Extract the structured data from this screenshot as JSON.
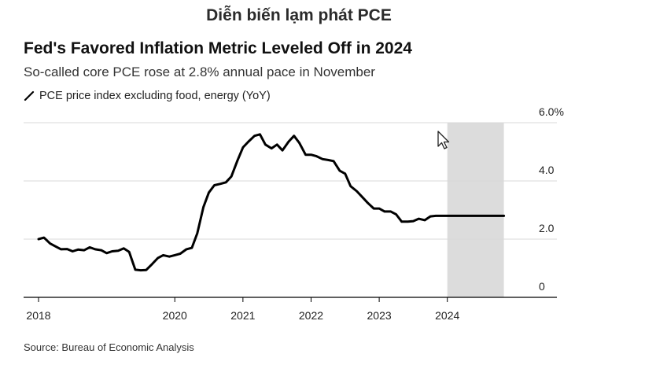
{
  "page": {
    "top_title": "Diễn biến lạm phát PCE"
  },
  "chart_data": {
    "type": "line",
    "title": "Fed's Favored Inflation Metric Leveled Off in 2024",
    "subtitle": "So-called core PCE rose at 2.8% annual pace in November",
    "source": "Source: Bureau of Economic Analysis",
    "xlabel": "",
    "ylabel": "",
    "xlim": [
      2018.0,
      2024.95
    ],
    "ylim": [
      0,
      6.0
    ],
    "x_ticks": [
      2018,
      2020,
      2021,
      2022,
      2023,
      2024
    ],
    "x_tick_labels": [
      "2018",
      "2020",
      "2021",
      "2022",
      "2023",
      "2024"
    ],
    "y_ticks": [
      0,
      2.0,
      4.0,
      6.0
    ],
    "y_tick_labels": [
      "0",
      "2.0",
      "4.0",
      "6.0%"
    ],
    "grid": true,
    "highlight_range": [
      2024.0,
      2024.83
    ],
    "highlight_color": "#dcdcdc",
    "line_color": "#000000",
    "legend_position": "top-left",
    "series": [
      {
        "name": "PCE price index excluding food, energy (YoY)",
        "x": [
          2018.0,
          2018.08,
          2018.17,
          2018.25,
          2018.33,
          2018.42,
          2018.5,
          2018.58,
          2018.67,
          2018.75,
          2018.83,
          2018.92,
          2019.0,
          2019.08,
          2019.17,
          2019.25,
          2019.33,
          2019.42,
          2019.5,
          2019.58,
          2019.67,
          2019.75,
          2019.83,
          2019.92,
          2020.0,
          2020.08,
          2020.17,
          2020.25,
          2020.33,
          2020.42,
          2020.5,
          2020.58,
          2020.67,
          2020.75,
          2020.83,
          2020.92,
          2021.0,
          2021.08,
          2021.17,
          2021.25,
          2021.33,
          2021.42,
          2021.5,
          2021.58,
          2021.67,
          2021.75,
          2021.83,
          2021.92,
          2022.0,
          2022.08,
          2022.17,
          2022.25,
          2022.33,
          2022.42,
          2022.5,
          2022.58,
          2022.67,
          2022.75,
          2022.83,
          2022.92,
          2023.0,
          2023.08,
          2023.17,
          2023.25,
          2023.33,
          2023.42,
          2023.5,
          2023.58,
          2023.67,
          2023.75,
          2023.83,
          2023.92,
          2024.0,
          2024.08,
          2024.17,
          2024.25,
          2024.33,
          2024.42,
          2024.5,
          2024.58,
          2024.67,
          2024.75,
          2024.83
        ],
        "values": [
          2.0,
          2.05,
          1.85,
          1.75,
          1.65,
          1.66,
          1.58,
          1.64,
          1.62,
          1.72,
          1.65,
          1.62,
          1.52,
          1.58,
          1.6,
          1.68,
          1.56,
          0.95,
          0.93,
          0.94,
          1.15,
          1.35,
          1.45,
          1.4,
          1.45,
          1.5,
          1.65,
          1.7,
          2.2,
          3.1,
          3.6,
          3.85,
          3.9,
          3.95,
          4.15,
          4.7,
          5.15,
          5.35,
          5.55,
          5.6,
          5.25,
          5.12,
          5.25,
          5.05,
          5.35,
          5.55,
          5.3,
          4.9,
          4.9,
          4.85,
          4.75,
          4.72,
          4.68,
          4.35,
          4.25,
          3.82,
          3.65,
          3.45,
          3.25,
          3.05,
          3.05,
          2.95,
          2.95,
          2.85,
          2.6,
          2.6,
          2.62,
          2.7,
          2.65,
          2.78,
          2.8,
          2.8,
          2.8,
          2.8,
          2.8,
          2.8,
          2.8,
          2.8,
          2.8,
          2.8,
          2.8,
          2.8,
          2.8
        ]
      }
    ]
  }
}
